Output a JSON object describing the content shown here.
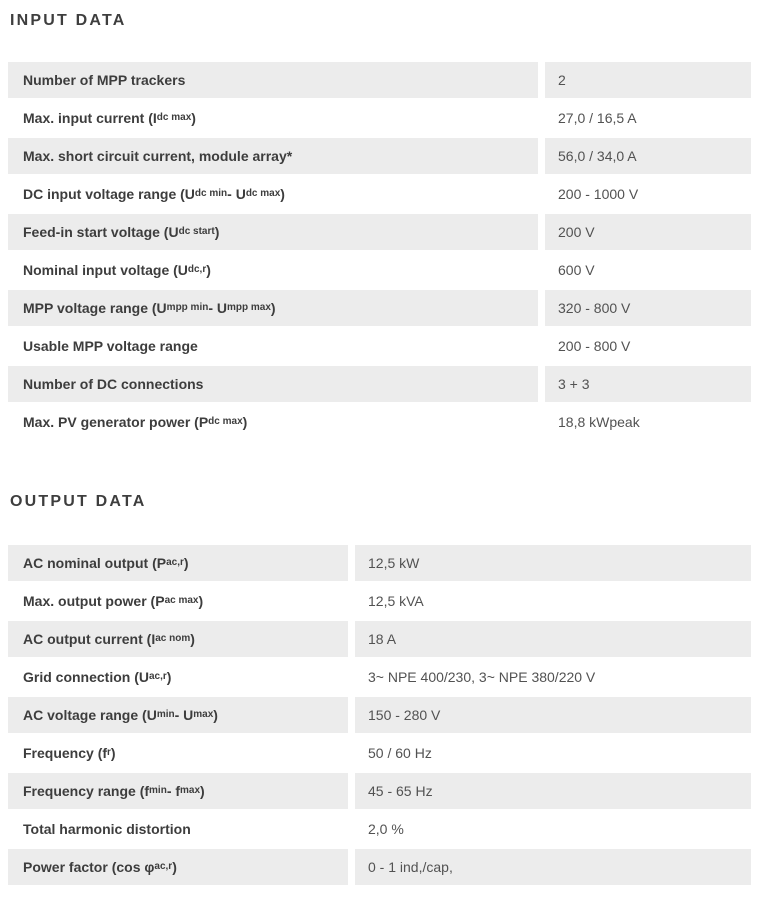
{
  "colors": {
    "row_gray": "#ececec",
    "title_color": "#3e3e3e",
    "label_color": "#3d3d3d",
    "value_color": "#525252"
  },
  "sections": [
    {
      "title": "INPUT DATA",
      "rows": [
        {
          "label": [
            {
              "t": "Number of MPP trackers"
            }
          ],
          "value": "2"
        },
        {
          "label": [
            {
              "t": "Max. input current (I"
            },
            {
              "t": "dc max",
              "sub": true
            },
            {
              "t": ")"
            }
          ],
          "value": "27,0 / 16,5 A"
        },
        {
          "label": [
            {
              "t": "Max. short circuit current, module array*"
            }
          ],
          "value": "56,0 / 34,0 A"
        },
        {
          "label": [
            {
              "t": "DC input voltage range (U"
            },
            {
              "t": "dc min",
              "sub": true
            },
            {
              "t": " - U"
            },
            {
              "t": "dc max",
              "sub": true
            },
            {
              "t": ")"
            }
          ],
          "value": "200 - 1000 V"
        },
        {
          "label": [
            {
              "t": "Feed-in start voltage (U"
            },
            {
              "t": "dc start",
              "sub": true
            },
            {
              "t": ")"
            }
          ],
          "value": "200 V"
        },
        {
          "label": [
            {
              "t": "Nominal input voltage (U"
            },
            {
              "t": "dc,r",
              "sub": true
            },
            {
              "t": ")"
            }
          ],
          "value": "600 V"
        },
        {
          "label": [
            {
              "t": "MPP voltage range (U"
            },
            {
              "t": "mpp min",
              "sub": true
            },
            {
              "t": " - U"
            },
            {
              "t": "mpp max",
              "sub": true
            },
            {
              "t": ")"
            }
          ],
          "value": "320 - 800 V"
        },
        {
          "label": [
            {
              "t": "Usable MPP voltage range"
            }
          ],
          "value": "200 - 800 V"
        },
        {
          "label": [
            {
              "t": "Number of DC connections"
            }
          ],
          "value": "3 + 3"
        },
        {
          "label": [
            {
              "t": "Max. PV generator power (P"
            },
            {
              "t": "dc max",
              "sub": true
            },
            {
              "t": ")"
            }
          ],
          "value": "18,8 kWpeak"
        }
      ]
    },
    {
      "title": "OUTPUT DATA",
      "rows": [
        {
          "label": [
            {
              "t": "AC nominal output (P"
            },
            {
              "t": "ac,r",
              "sub": true
            },
            {
              "t": ")"
            }
          ],
          "value": "12,5 kW"
        },
        {
          "label": [
            {
              "t": "Max. output power (P"
            },
            {
              "t": "ac max",
              "sub": true
            },
            {
              "t": ")"
            }
          ],
          "value": "12,5 kVA"
        },
        {
          "label": [
            {
              "t": "AC output current (I"
            },
            {
              "t": "ac nom",
              "sub": true
            },
            {
              "t": ")"
            }
          ],
          "value": "18 A"
        },
        {
          "label": [
            {
              "t": "Grid connection (U"
            },
            {
              "t": "ac,r",
              "sub": true
            },
            {
              "t": ")"
            }
          ],
          "value": "3~ NPE 400/230, 3~ NPE 380/220 V"
        },
        {
          "label": [
            {
              "t": "AC voltage range (U"
            },
            {
              "t": "min",
              "sub": true
            },
            {
              "t": " - U"
            },
            {
              "t": "max",
              "sub": true
            },
            {
              "t": ")"
            }
          ],
          "value": "150 - 280 V"
        },
        {
          "label": [
            {
              "t": "Frequency (f"
            },
            {
              "t": "r",
              "sub": true
            },
            {
              "t": ")"
            }
          ],
          "value": "50 / 60 Hz"
        },
        {
          "label": [
            {
              "t": "Frequency range (f"
            },
            {
              "t": "min",
              "sub": true
            },
            {
              "t": " - f"
            },
            {
              "t": "max",
              "sub": true
            },
            {
              "t": ")"
            }
          ],
          "value": "45 - 65 Hz"
        },
        {
          "label": [
            {
              "t": "Total harmonic distortion"
            }
          ],
          "value": "2,0 %"
        },
        {
          "label": [
            {
              "t": "Power factor (cos φ"
            },
            {
              "t": "ac,r",
              "sub": true
            },
            {
              "t": ")"
            }
          ],
          "value": "0 - 1 ind,/cap,"
        }
      ]
    }
  ]
}
